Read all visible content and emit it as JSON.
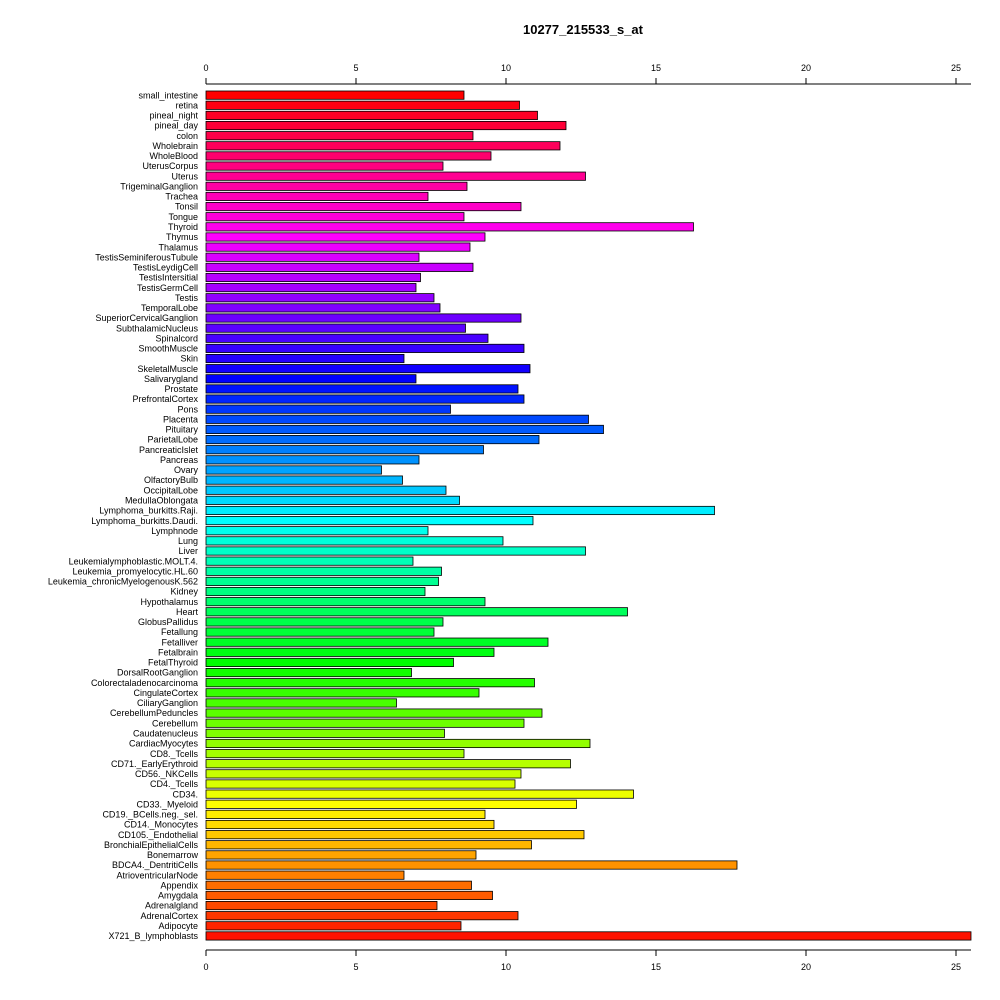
{
  "chart_data": {
    "type": "bar",
    "orientation": "horizontal",
    "title": "10277_215533_s_at",
    "xlim": [
      0,
      25.5
    ],
    "xticks": [
      0,
      5,
      10,
      15,
      20,
      25
    ],
    "xlabel": "",
    "ylabel": "",
    "grid": false,
    "legend": "none",
    "categories": [
      "small_intestine",
      "retina",
      "pineal_night",
      "pineal_day",
      "colon",
      "Wholebrain",
      "WholeBlood",
      "UterusCorpus",
      "Uterus",
      "TrigeminalGanglion",
      "Trachea",
      "Tonsil",
      "Tongue",
      "Thyroid",
      "Thymus",
      "Thalamus",
      "TestisSeminiferousTubule",
      "TestisLeydigCell",
      "TestisIntersitial",
      "TestisGermCell",
      "Testis",
      "TemporalLobe",
      "SuperiorCervicalGanglion",
      "SubthalamicNucleus",
      "Spinalcord",
      "SmoothMuscle",
      "Skin",
      "SkeletalMuscle",
      "Salivarygland",
      "Prostate",
      "PrefrontalCortex",
      "Pons",
      "Placenta",
      "Pituitary",
      "ParietalLobe",
      "PancreaticIslet",
      "Pancreas",
      "Ovary",
      "OlfactoryBulb",
      "OccipitalLobe",
      "MedullaOblongata",
      "Lymphoma_burkitts.Raji.",
      "Lymphoma_burkitts.Daudi.",
      "Lymphnode",
      "Lung",
      "Liver",
      "Leukemialymphoblastic.MOLT.4.",
      "Leukemia_promyelocytic.HL.60",
      "Leukemia_chronicMyelogenousK.562",
      "Kidney",
      "Hypothalamus",
      "Heart",
      "GlobusPallidus",
      "Fetallung",
      "Fetalliver",
      "Fetalbrain",
      "FetalThyroid",
      "DorsalRootGanglion",
      "Colorectaladenocarcinoma",
      "CingulateCortex",
      "CiliaryGanglion",
      "CerebellumPeduncles",
      "Cerebellum",
      "Caudatenucleus",
      "CardiacMyocytes",
      "CD8._Tcells",
      "CD71._EarlyErythroid",
      "CD56._NKCells",
      "CD4._Tcells",
      "CD34.",
      "CD33._Myeloid",
      "CD19._BCells.neg._sel.",
      "CD14._Monocytes",
      "CD105._Endothelial",
      "BronchialEpithelialCells",
      "Bonemarrow",
      "BDCA4._DentritiCells",
      "AtrioventricularNode",
      "Appendix",
      "Amygdala",
      "Adrenalgland",
      "AdrenalCortex",
      "Adipocyte",
      "X721_B_lymphoblasts"
    ],
    "values": [
      8.6,
      10.45,
      11.05,
      12.0,
      8.9,
      11.8,
      9.5,
      7.9,
      12.65,
      8.7,
      7.4,
      10.5,
      8.6,
      16.25,
      9.3,
      8.8,
      7.1,
      8.9,
      7.15,
      7.0,
      7.6,
      7.8,
      10.5,
      8.65,
      9.4,
      10.6,
      6.6,
      10.8,
      7.0,
      10.4,
      10.6,
      8.15,
      12.75,
      13.25,
      11.1,
      9.25,
      7.1,
      5.85,
      6.55,
      8.0,
      8.45,
      16.95,
      10.9,
      7.4,
      9.9,
      12.65,
      6.9,
      7.85,
      7.75,
      7.3,
      9.3,
      14.05,
      7.9,
      7.6,
      11.4,
      9.6,
      8.25,
      6.85,
      10.95,
      9.1,
      6.35,
      11.2,
      10.6,
      7.95,
      12.8,
      8.6,
      12.15,
      10.5,
      10.3,
      14.25,
      12.35,
      9.3,
      9.6,
      12.6,
      10.85,
      9.0,
      17.7,
      6.6,
      8.85,
      9.55,
      7.7,
      10.4,
      8.5,
      25.5
    ]
  }
}
